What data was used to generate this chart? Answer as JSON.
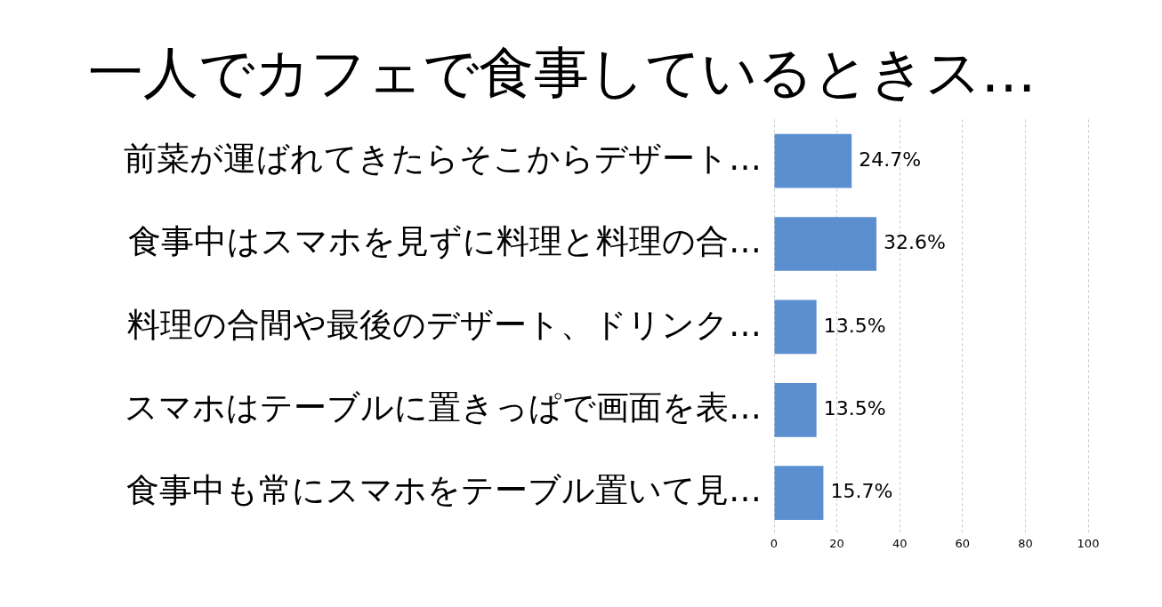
{
  "chart_data": {
    "type": "bar",
    "orientation": "horizontal",
    "title": "一人でカフェで食事しているときス…",
    "categories": [
      "前菜が運ばれてきたらそこからデザート…",
      "食事中はスマホを見ずに料理と料理の合…",
      "料理の合間や最後のデザート、ドリンク…",
      "スマホはテーブルに置きっぱで画面を表…",
      "食事中も常にスマホをテーブル置いて見…"
    ],
    "values": [
      24.7,
      32.6,
      13.5,
      13.5,
      15.7
    ],
    "value_labels": [
      "24.7%",
      "32.6%",
      "13.5%",
      "13.5%",
      "15.7%"
    ],
    "color": "#5b8fd0",
    "xlim": [
      0,
      100
    ],
    "xticks": [
      0,
      20,
      40,
      60,
      80,
      100
    ],
    "grid": "x"
  }
}
